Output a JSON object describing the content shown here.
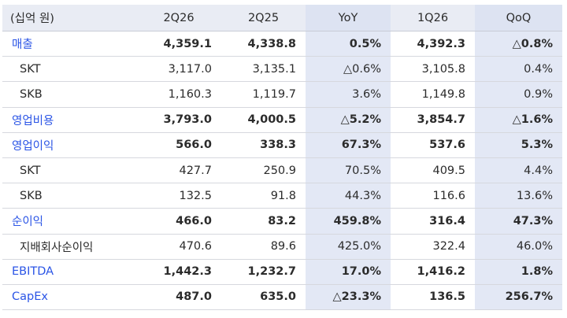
{
  "header": {
    "unit": "(십억 원)",
    "columns": [
      "2Q26",
      "2Q25",
      "YoY",
      "1Q26",
      "QoQ"
    ]
  },
  "rows": [
    {
      "label": "매출",
      "level": "main",
      "values": [
        "4,359.1",
        "4,338.8",
        "0.5%",
        "4,392.3",
        "△0.8%"
      ]
    },
    {
      "label": "SKT",
      "level": "sub",
      "values": [
        "3,117.0",
        "3,135.1",
        "△0.6%",
        "3,105.8",
        "0.4%"
      ]
    },
    {
      "label": "SKB",
      "level": "sub",
      "values": [
        "1,160.3",
        "1,119.7",
        "3.6%",
        "1,149.8",
        "0.9%"
      ]
    },
    {
      "label": "영업비용",
      "level": "main",
      "values": [
        "3,793.0",
        "4,000.5",
        "△5.2%",
        "3,854.7",
        "△1.6%"
      ]
    },
    {
      "label": "영업이익",
      "level": "main",
      "values": [
        "566.0",
        "338.3",
        "67.3%",
        "537.6",
        "5.3%"
      ]
    },
    {
      "label": "SKT",
      "level": "sub",
      "values": [
        "427.7",
        "250.9",
        "70.5%",
        "409.5",
        "4.4%"
      ]
    },
    {
      "label": "SKB",
      "level": "sub",
      "values": [
        "132.5",
        "91.8",
        "44.3%",
        "116.6",
        "13.6%"
      ]
    },
    {
      "label": "순이익",
      "level": "main",
      "values": [
        "466.0",
        "83.2",
        "459.8%",
        "316.4",
        "47.3%"
      ]
    },
    {
      "label": "지배회사순이익",
      "level": "sub",
      "values": [
        "470.6",
        "89.6",
        "425.0%",
        "322.4",
        "46.0%"
      ]
    },
    {
      "label": "EBITDA",
      "level": "main",
      "values": [
        "1,442.3",
        "1,232.7",
        "17.0%",
        "1,416.2",
        "1.8%"
      ]
    },
    {
      "label": "CapEx",
      "level": "main",
      "values": [
        "487.0",
        "635.0",
        "△23.3%",
        "136.5",
        "256.7%"
      ]
    }
  ],
  "colors": {
    "label_blue": "#2b55e6",
    "header_bg": "#e9ecf4",
    "highlight_bg": "#e3e8f5",
    "row_border": "#d6d8de"
  }
}
